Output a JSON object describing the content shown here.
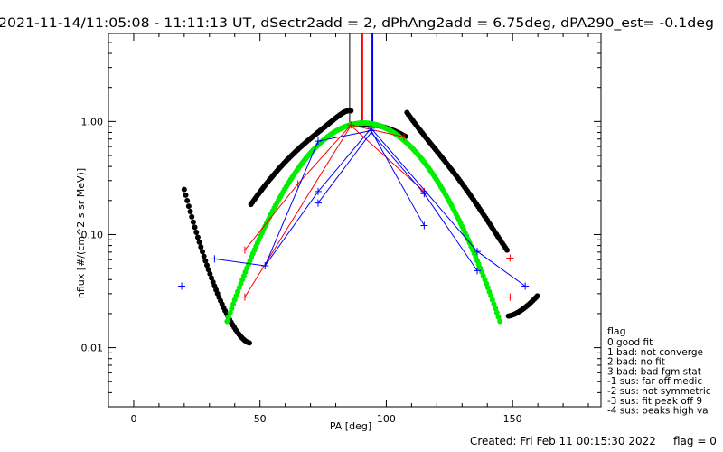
{
  "chart_data": {
    "type": "scatter",
    "title": "2021-11-14/11:05:08 - 11:11:13 UT, dSectr2add = 2, dPhAng2add = 6.75deg, dPA290_est=  -0.1deg",
    "xlabel": "PA [deg]",
    "ylabel": "nflux [#/(cm^2 s sr MeV)]",
    "xlim": [
      -10,
      185
    ],
    "ylim": [
      0.003,
      6.0
    ],
    "y_scale": "log",
    "x_ticks": [
      0,
      50,
      100,
      150
    ],
    "x_tick_labels": [
      "0",
      "50",
      "100",
      "150"
    ],
    "y_ticks": [
      0.01,
      0.1,
      1.0
    ],
    "y_tick_labels": [
      "0.01",
      "0.10",
      "1.00"
    ],
    "vertical_lines": [
      {
        "x": 85.5,
        "color": "#000000"
      },
      {
        "x": 90.5,
        "color": "#ff0000"
      },
      {
        "x": 94.5,
        "color": "#0000ff"
      }
    ],
    "series": [
      {
        "color": "#ff0000",
        "marker": "plus",
        "points": [
          [
            44,
            0.073
          ],
          [
            44,
            0.028
          ],
          [
            65,
            0.28
          ],
          [
            86,
            0.93
          ],
          [
            107,
            0.73
          ],
          [
            115,
            0.24
          ],
          [
            149,
            0.062
          ],
          [
            149,
            0.028
          ]
        ],
        "lines": [
          [
            [
              44,
              0.073
            ],
            [
              65,
              0.28
            ],
            [
              86,
              0.93
            ],
            [
              107,
              0.73
            ]
          ],
          [
            [
              44,
              0.028
            ],
            [
              86,
              0.92
            ],
            [
              115,
              0.24
            ]
          ]
        ]
      },
      {
        "color": "#0000ff",
        "marker": "plus",
        "points": [
          [
            19,
            0.035
          ],
          [
            32,
            0.061
          ],
          [
            52,
            0.053
          ],
          [
            73,
            0.67
          ],
          [
            73,
            0.24
          ],
          [
            73,
            0.19
          ],
          [
            94,
            0.87
          ],
          [
            94,
            0.83
          ],
          [
            115,
            0.12
          ],
          [
            115,
            0.23
          ],
          [
            136,
            0.071
          ],
          [
            136,
            0.048
          ],
          [
            155,
            0.035
          ]
        ],
        "lines": [
          [
            [
              32,
              0.061
            ],
            [
              52,
              0.053
            ],
            [
              73,
              0.24
            ],
            [
              94,
              0.87
            ],
            [
              136,
              0.071
            ],
            [
              155,
              0.035
            ]
          ],
          [
            [
              52,
              0.053
            ],
            [
              73,
              0.67
            ],
            [
              94,
              0.83
            ],
            [
              115,
              0.12
            ]
          ],
          [
            [
              73,
              0.19
            ],
            [
              94,
              0.8
            ],
            [
              115,
              0.23
            ],
            [
              136,
              0.048
            ]
          ]
        ]
      }
    ],
    "fit_curves": [
      {
        "color": "#000000",
        "model": "sinusoidal",
        "x_range": [
          20,
          160
        ],
        "peak_x": 90.5,
        "peak_y": 0.95
      },
      {
        "color": "#00ee00",
        "model": "gaussian",
        "x_range": [
          37,
          145
        ],
        "peak_x": 91,
        "peak_y": 0.97,
        "sigma_deg": 19
      }
    ],
    "legend": {
      "placement": "right",
      "title": "flag",
      "entries": [
        " 0 good fit",
        " 1 bad: not converge",
        " 2 bad: no fit",
        " 3 bad: bad fgm stat",
        "-1 sus: far off medic",
        "-2 sus: not symmetric",
        "-3 sus: fit peak off 9",
        "-4 sus: peaks high va"
      ]
    }
  },
  "footer": {
    "created": "Created: Fri Feb 11 00:15:30 2022",
    "flag": "flag = 0"
  }
}
